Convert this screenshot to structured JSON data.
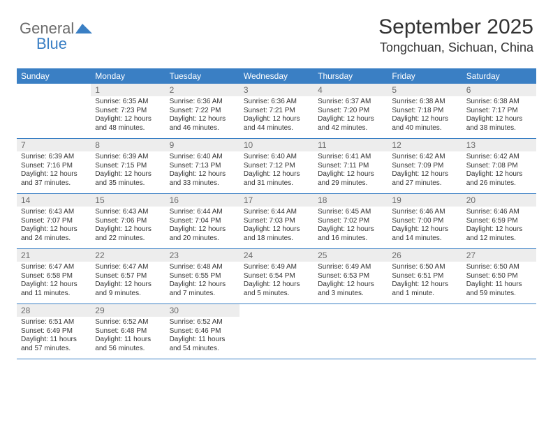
{
  "brand": {
    "word1": "General",
    "word2": "Blue"
  },
  "header": {
    "month_title": "September 2025",
    "location": "Tongchuan, Sichuan, China"
  },
  "colors": {
    "header_bg": "#3a7fc4",
    "daynum_bg": "#ededed",
    "text": "#333333",
    "divider": "#3a7fc4"
  },
  "typography": {
    "month_title_fontsize": 30,
    "location_fontsize": 18,
    "dow_fontsize": 12,
    "cell_fontsize": 10
  },
  "days_of_week": [
    "Sunday",
    "Monday",
    "Tuesday",
    "Wednesday",
    "Thursday",
    "Friday",
    "Saturday"
  ],
  "weeks": [
    [
      null,
      {
        "n": "1",
        "sunrise": "Sunrise: 6:35 AM",
        "sunset": "Sunset: 7:23 PM",
        "day1": "Daylight: 12 hours",
        "day2": "and 48 minutes."
      },
      {
        "n": "2",
        "sunrise": "Sunrise: 6:36 AM",
        "sunset": "Sunset: 7:22 PM",
        "day1": "Daylight: 12 hours",
        "day2": "and 46 minutes."
      },
      {
        "n": "3",
        "sunrise": "Sunrise: 6:36 AM",
        "sunset": "Sunset: 7:21 PM",
        "day1": "Daylight: 12 hours",
        "day2": "and 44 minutes."
      },
      {
        "n": "4",
        "sunrise": "Sunrise: 6:37 AM",
        "sunset": "Sunset: 7:20 PM",
        "day1": "Daylight: 12 hours",
        "day2": "and 42 minutes."
      },
      {
        "n": "5",
        "sunrise": "Sunrise: 6:38 AM",
        "sunset": "Sunset: 7:18 PM",
        "day1": "Daylight: 12 hours",
        "day2": "and 40 minutes."
      },
      {
        "n": "6",
        "sunrise": "Sunrise: 6:38 AM",
        "sunset": "Sunset: 7:17 PM",
        "day1": "Daylight: 12 hours",
        "day2": "and 38 minutes."
      }
    ],
    [
      {
        "n": "7",
        "sunrise": "Sunrise: 6:39 AM",
        "sunset": "Sunset: 7:16 PM",
        "day1": "Daylight: 12 hours",
        "day2": "and 37 minutes."
      },
      {
        "n": "8",
        "sunrise": "Sunrise: 6:39 AM",
        "sunset": "Sunset: 7:15 PM",
        "day1": "Daylight: 12 hours",
        "day2": "and 35 minutes."
      },
      {
        "n": "9",
        "sunrise": "Sunrise: 6:40 AM",
        "sunset": "Sunset: 7:13 PM",
        "day1": "Daylight: 12 hours",
        "day2": "and 33 minutes."
      },
      {
        "n": "10",
        "sunrise": "Sunrise: 6:40 AM",
        "sunset": "Sunset: 7:12 PM",
        "day1": "Daylight: 12 hours",
        "day2": "and 31 minutes."
      },
      {
        "n": "11",
        "sunrise": "Sunrise: 6:41 AM",
        "sunset": "Sunset: 7:11 PM",
        "day1": "Daylight: 12 hours",
        "day2": "and 29 minutes."
      },
      {
        "n": "12",
        "sunrise": "Sunrise: 6:42 AM",
        "sunset": "Sunset: 7:09 PM",
        "day1": "Daylight: 12 hours",
        "day2": "and 27 minutes."
      },
      {
        "n": "13",
        "sunrise": "Sunrise: 6:42 AM",
        "sunset": "Sunset: 7:08 PM",
        "day1": "Daylight: 12 hours",
        "day2": "and 26 minutes."
      }
    ],
    [
      {
        "n": "14",
        "sunrise": "Sunrise: 6:43 AM",
        "sunset": "Sunset: 7:07 PM",
        "day1": "Daylight: 12 hours",
        "day2": "and 24 minutes."
      },
      {
        "n": "15",
        "sunrise": "Sunrise: 6:43 AM",
        "sunset": "Sunset: 7:06 PM",
        "day1": "Daylight: 12 hours",
        "day2": "and 22 minutes."
      },
      {
        "n": "16",
        "sunrise": "Sunrise: 6:44 AM",
        "sunset": "Sunset: 7:04 PM",
        "day1": "Daylight: 12 hours",
        "day2": "and 20 minutes."
      },
      {
        "n": "17",
        "sunrise": "Sunrise: 6:44 AM",
        "sunset": "Sunset: 7:03 PM",
        "day1": "Daylight: 12 hours",
        "day2": "and 18 minutes."
      },
      {
        "n": "18",
        "sunrise": "Sunrise: 6:45 AM",
        "sunset": "Sunset: 7:02 PM",
        "day1": "Daylight: 12 hours",
        "day2": "and 16 minutes."
      },
      {
        "n": "19",
        "sunrise": "Sunrise: 6:46 AM",
        "sunset": "Sunset: 7:00 PM",
        "day1": "Daylight: 12 hours",
        "day2": "and 14 minutes."
      },
      {
        "n": "20",
        "sunrise": "Sunrise: 6:46 AM",
        "sunset": "Sunset: 6:59 PM",
        "day1": "Daylight: 12 hours",
        "day2": "and 12 minutes."
      }
    ],
    [
      {
        "n": "21",
        "sunrise": "Sunrise: 6:47 AM",
        "sunset": "Sunset: 6:58 PM",
        "day1": "Daylight: 12 hours",
        "day2": "and 11 minutes."
      },
      {
        "n": "22",
        "sunrise": "Sunrise: 6:47 AM",
        "sunset": "Sunset: 6:57 PM",
        "day1": "Daylight: 12 hours",
        "day2": "and 9 minutes."
      },
      {
        "n": "23",
        "sunrise": "Sunrise: 6:48 AM",
        "sunset": "Sunset: 6:55 PM",
        "day1": "Daylight: 12 hours",
        "day2": "and 7 minutes."
      },
      {
        "n": "24",
        "sunrise": "Sunrise: 6:49 AM",
        "sunset": "Sunset: 6:54 PM",
        "day1": "Daylight: 12 hours",
        "day2": "and 5 minutes."
      },
      {
        "n": "25",
        "sunrise": "Sunrise: 6:49 AM",
        "sunset": "Sunset: 6:53 PM",
        "day1": "Daylight: 12 hours",
        "day2": "and 3 minutes."
      },
      {
        "n": "26",
        "sunrise": "Sunrise: 6:50 AM",
        "sunset": "Sunset: 6:51 PM",
        "day1": "Daylight: 12 hours",
        "day2": "and 1 minute."
      },
      {
        "n": "27",
        "sunrise": "Sunrise: 6:50 AM",
        "sunset": "Sunset: 6:50 PM",
        "day1": "Daylight: 11 hours",
        "day2": "and 59 minutes."
      }
    ],
    [
      {
        "n": "28",
        "sunrise": "Sunrise: 6:51 AM",
        "sunset": "Sunset: 6:49 PM",
        "day1": "Daylight: 11 hours",
        "day2": "and 57 minutes."
      },
      {
        "n": "29",
        "sunrise": "Sunrise: 6:52 AM",
        "sunset": "Sunset: 6:48 PM",
        "day1": "Daylight: 11 hours",
        "day2": "and 56 minutes."
      },
      {
        "n": "30",
        "sunrise": "Sunrise: 6:52 AM",
        "sunset": "Sunset: 6:46 PM",
        "day1": "Daylight: 11 hours",
        "day2": "and 54 minutes."
      },
      null,
      null,
      null,
      null
    ]
  ]
}
